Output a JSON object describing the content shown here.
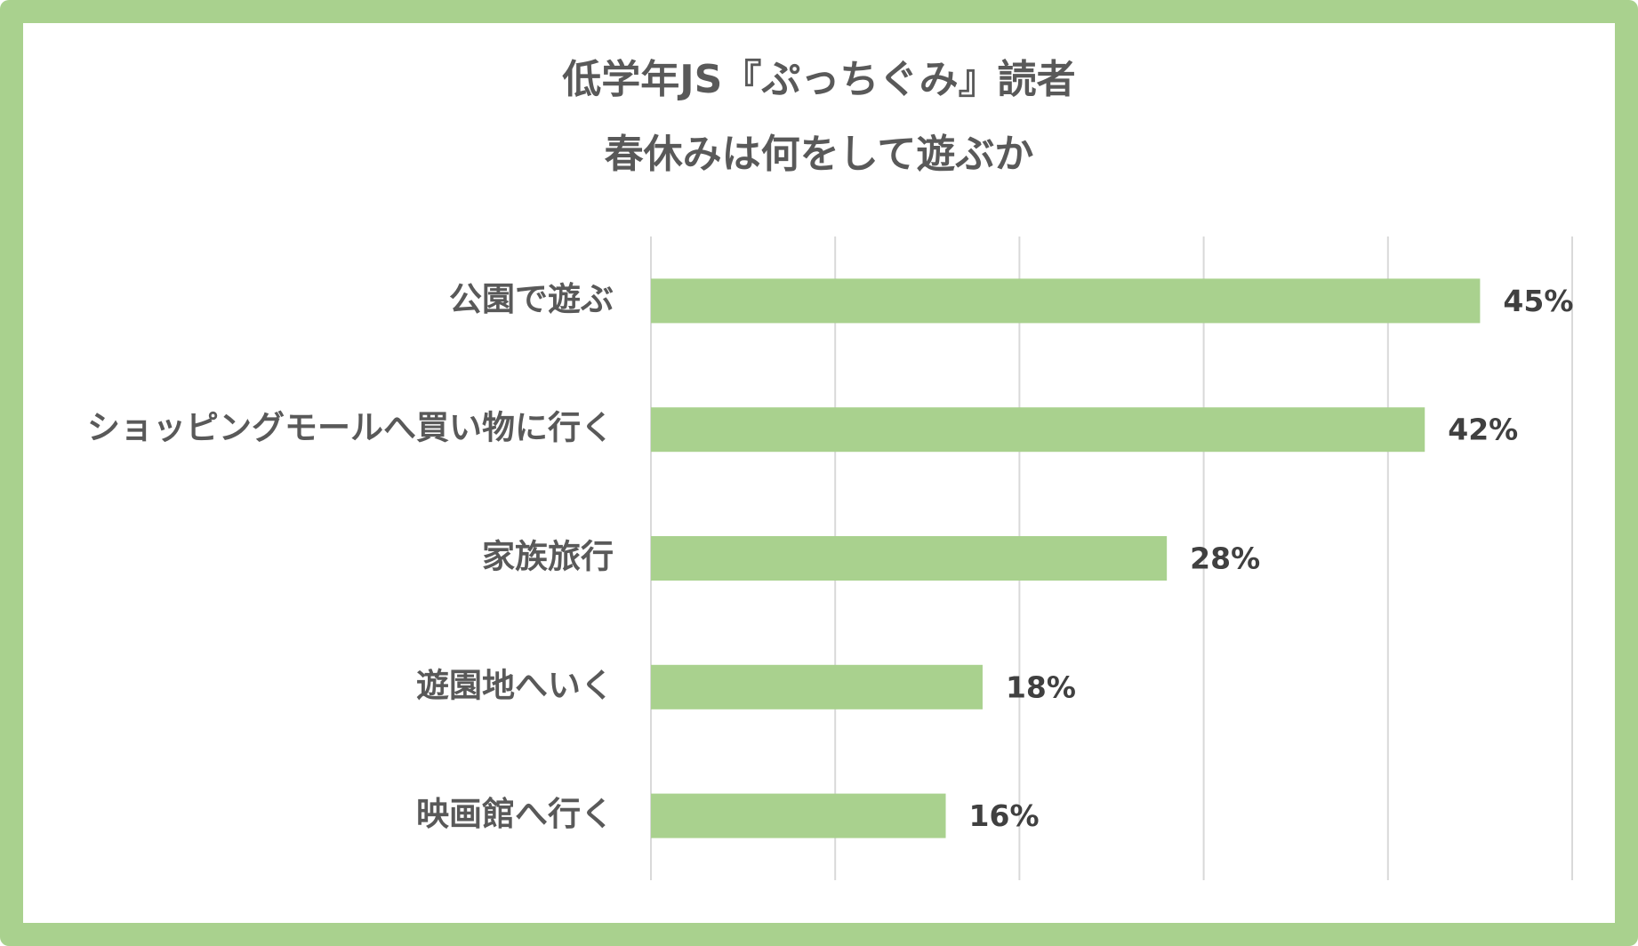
{
  "chart_data": {
    "type": "bar",
    "orientation": "horizontal",
    "title": [
      "低学年JS『ぷっちぐみ』読者",
      "春休みは何をして遊ぶか"
    ],
    "categories": [
      "公園で遊ぶ",
      "ショッピングモールへ買い物に行く",
      "家族旅行",
      "遊園地へいく",
      "映画館へ行く"
    ],
    "values": [
      45,
      42,
      28,
      18,
      16
    ],
    "value_labels": [
      "45%",
      "42%",
      "28%",
      "18%",
      "16%"
    ],
    "unit": "%",
    "xlim": [
      0,
      50
    ],
    "x_gridlines": [
      0,
      10,
      20,
      30,
      40,
      50
    ],
    "grid": true,
    "legend": "none",
    "bar_color": "#a9d18e",
    "grid_color": "#d9d9d9",
    "frame_color": "#a9d18e"
  }
}
